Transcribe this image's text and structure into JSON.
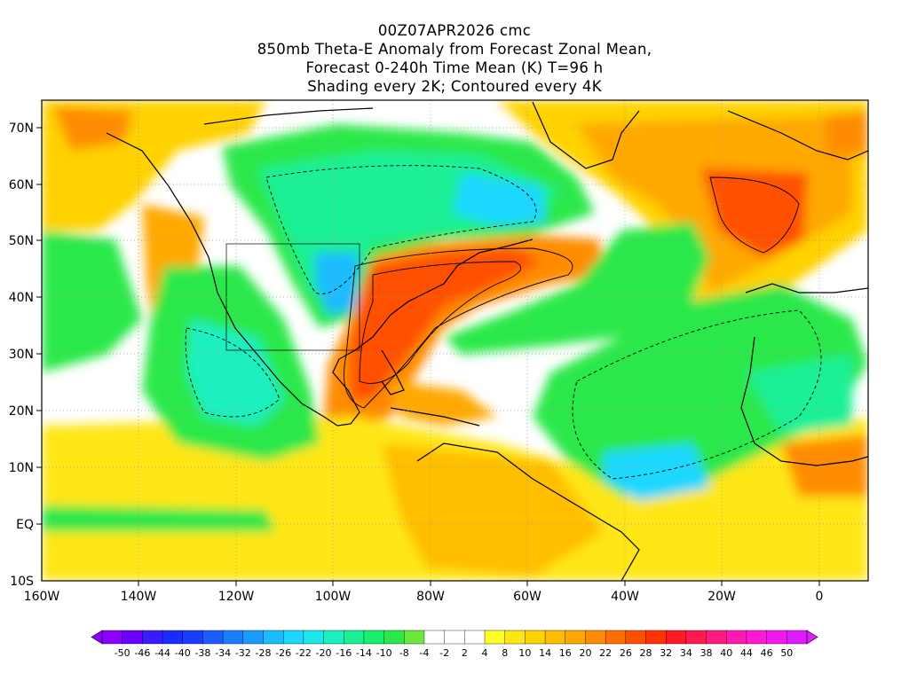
{
  "title_lines": [
    "00Z07APR2026 cmc",
    "850mb Theta-E Anomaly from Forecast Zonal Mean,",
    "Forecast 0-240h Time Mean (K) T=96 h",
    "Shading every 2K; Contoured every 4K"
  ],
  "map": {
    "lat_labels": [
      "70N",
      "60N",
      "50N",
      "40N",
      "30N",
      "20N",
      "10N",
      "EQ",
      "10S"
    ],
    "lon_labels": [
      "160W",
      "140W",
      "120W",
      "100W",
      "80W",
      "60W",
      "40W",
      "20W",
      "0"
    ]
  },
  "colorbar": {
    "labels": [
      "-50",
      "-46",
      "-44",
      "-40",
      "-38",
      "-34",
      "-32",
      "-28",
      "-26",
      "-22",
      "-20",
      "-16",
      "-14",
      "-10",
      "-8",
      "-4",
      "-2",
      "2",
      "4",
      "8",
      "10",
      "14",
      "16",
      "20",
      "22",
      "26",
      "28",
      "32",
      "34",
      "38",
      "40",
      "44",
      "46",
      "50"
    ],
    "colors": [
      "#8a00ff",
      "#6a00ff",
      "#3a1cff",
      "#1a2cff",
      "#1a3cff",
      "#1a5cff",
      "#1a7cff",
      "#1a9cff",
      "#1abcff",
      "#1ad8ff",
      "#1ae8ea",
      "#1af0c0",
      "#1af096",
      "#1aee6e",
      "#29e84a",
      "#6ae83c",
      "#ffffff",
      "#ffffff",
      "#ffffff",
      "#ffff28",
      "#ffe614",
      "#ffd200",
      "#ffbe00",
      "#ffa800",
      "#ff8c00",
      "#ff6e00",
      "#ff5000",
      "#ff3200",
      "#ff1a28",
      "#ff1a50",
      "#ff1a82",
      "#ff1ab4",
      "#ff1ad8",
      "#f01af0",
      "#e01aff"
    ]
  },
  "anomaly_regions": [
    {
      "id": "labrador-cold",
      "kind": "cold",
      "level": "strong"
    },
    {
      "id": "plains-cold",
      "kind": "cold",
      "level": "strong"
    },
    {
      "id": "east-us-warm",
      "kind": "warm",
      "level": "strong"
    },
    {
      "id": "greenland-warm",
      "kind": "warm",
      "level": "strong"
    },
    {
      "id": "pacific-cold",
      "kind": "cold",
      "level": "moderate"
    },
    {
      "id": "atlantic-cold",
      "kind": "cold",
      "level": "moderate"
    }
  ]
}
